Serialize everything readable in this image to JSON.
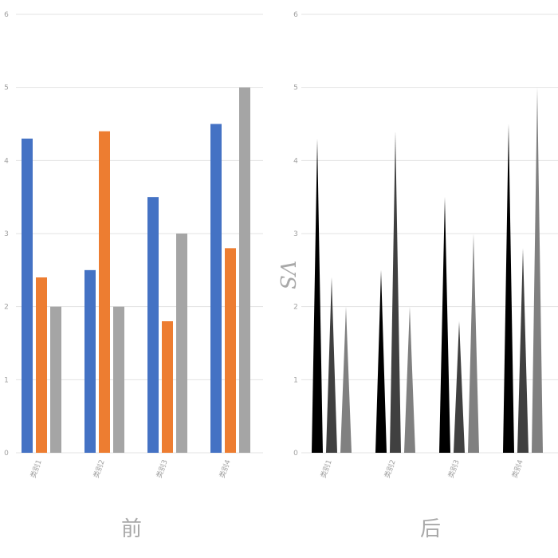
{
  "chart_data": [
    {
      "type": "bar",
      "categories": [
        "类别1",
        "类别2",
        "类别3",
        "类别4"
      ],
      "series": [
        {
          "values": [
            4.3,
            2.5,
            3.5,
            4.5
          ],
          "color": "#4472c4"
        },
        {
          "values": [
            2.4,
            4.4,
            1.8,
            2.8
          ],
          "color": "#ed7d31"
        },
        {
          "values": [
            2.0,
            2.0,
            3.0,
            5.0
          ],
          "color": "#a5a5a5"
        }
      ],
      "ylim": [
        0,
        6
      ],
      "yticks": [
        "0",
        "1",
        "2",
        "3",
        "4",
        "5",
        "6"
      ],
      "grid": true,
      "caption": "前"
    },
    {
      "type": "bar",
      "mark": "triangle",
      "categories": [
        "类别1",
        "类别2",
        "类别3",
        "类别4"
      ],
      "series": [
        {
          "values": [
            4.3,
            2.5,
            3.5,
            4.5
          ],
          "color": "#000000"
        },
        {
          "values": [
            2.4,
            4.4,
            1.8,
            2.8
          ],
          "color": "#404040"
        },
        {
          "values": [
            2.0,
            2.0,
            3.0,
            5.0
          ],
          "color": "#808080"
        }
      ],
      "ylim": [
        0,
        6
      ],
      "yticks": [
        "0",
        "1",
        "2",
        "3",
        "4",
        "5",
        "6"
      ],
      "grid": true,
      "caption": "后"
    }
  ],
  "separator": "VS"
}
